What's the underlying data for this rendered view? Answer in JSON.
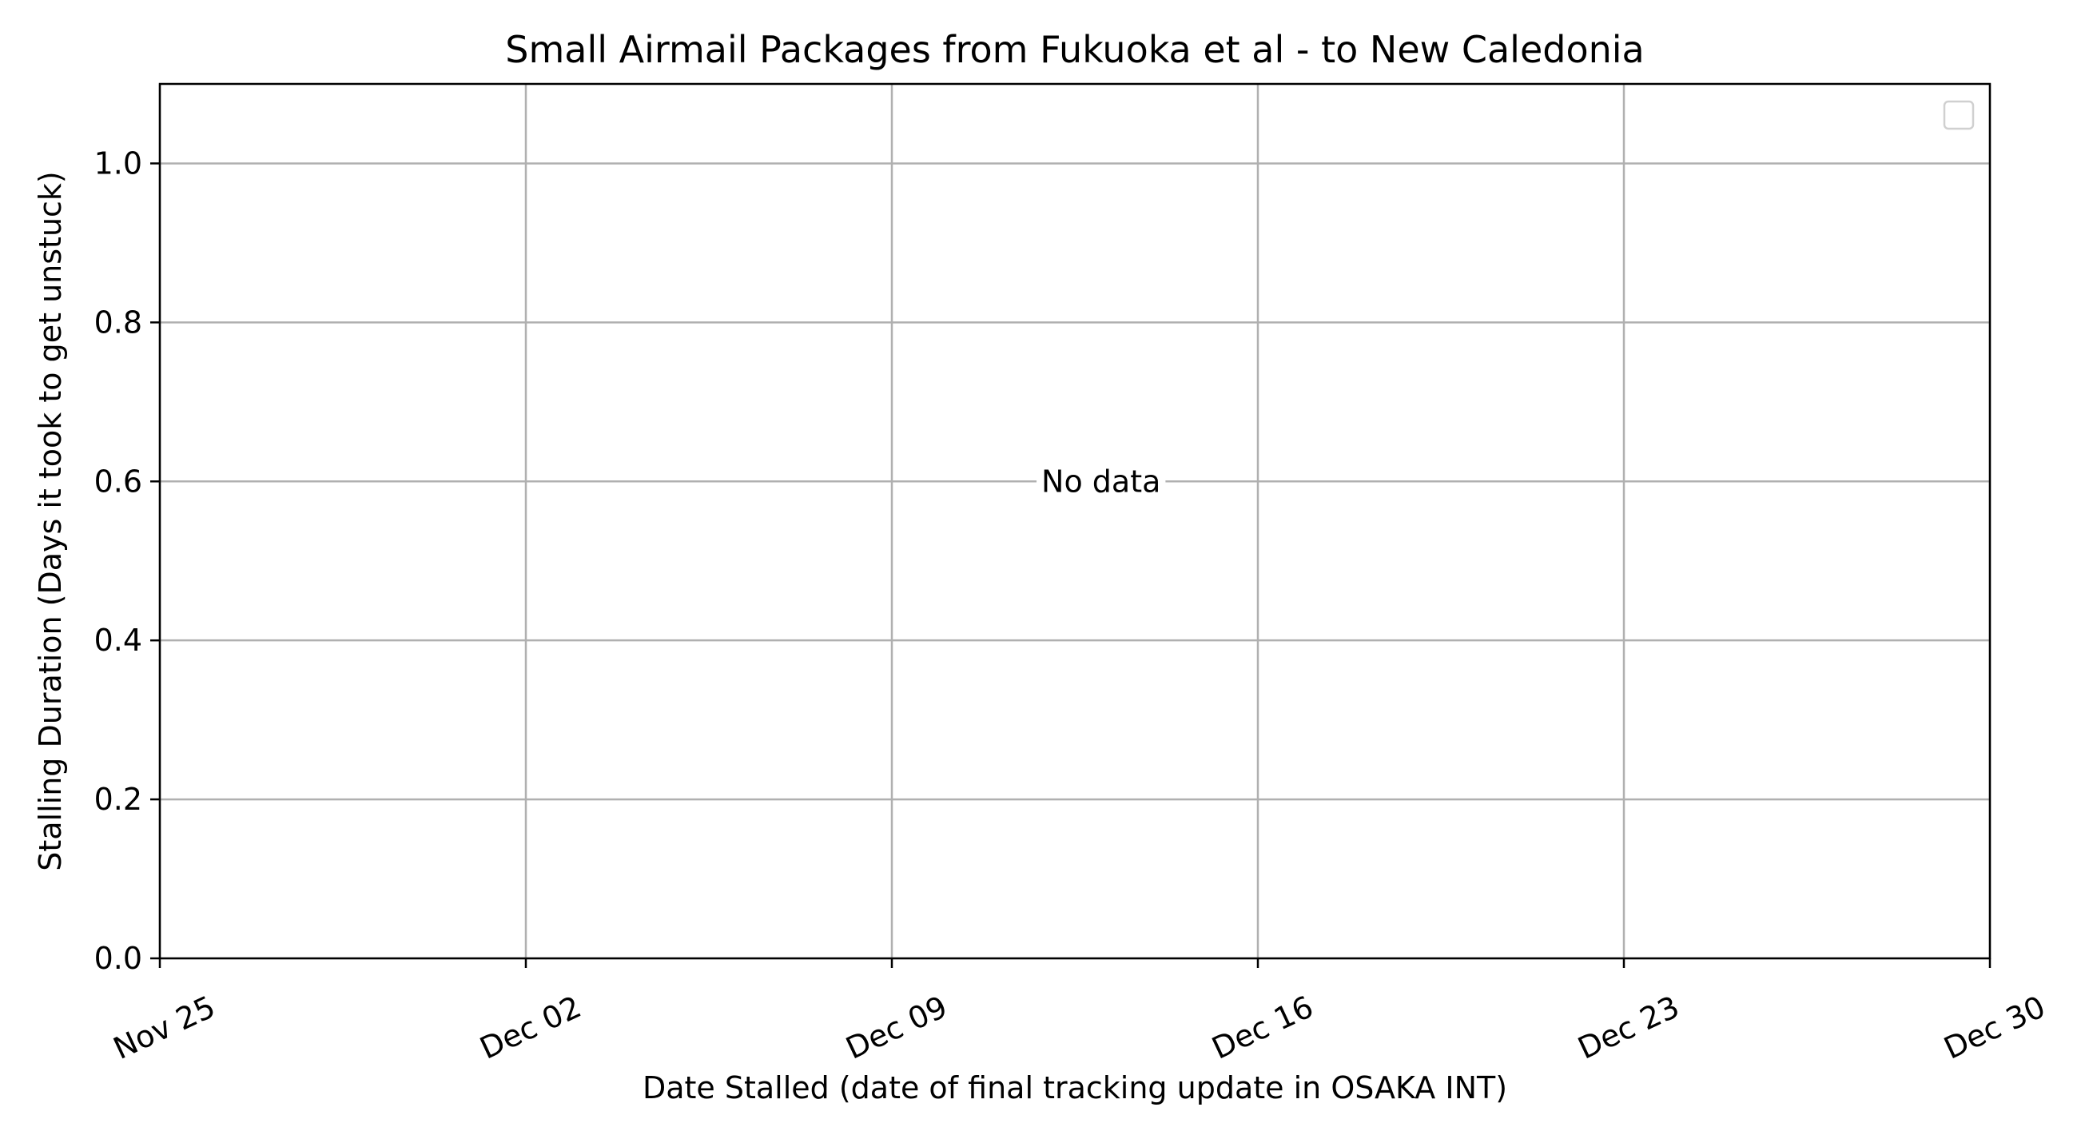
{
  "chart_data": {
    "type": "scatter",
    "title": "Small Airmail Packages from Fukuoka et al - to New Caledonia",
    "xlabel": "Date Stalled (date of final tracking update in OSAKA INT)",
    "ylabel": "Stalling Duration (Days it took to get unstuck)",
    "xlim": [
      "2023-11-25",
      "2023-12-30"
    ],
    "ylim": [
      0,
      1.1
    ],
    "x_ticks": [
      {
        "date": "2023-11-25",
        "label": "Nov 25"
      },
      {
        "date": "2023-12-02",
        "label": "Dec 02"
      },
      {
        "date": "2023-12-09",
        "label": "Dec 09"
      },
      {
        "date": "2023-12-16",
        "label": "Dec 16"
      },
      {
        "date": "2023-12-23",
        "label": "Dec 23"
      },
      {
        "date": "2023-12-30",
        "label": "Dec 30"
      }
    ],
    "y_ticks": [
      {
        "value": 0.0,
        "label": "0.0"
      },
      {
        "value": 0.2,
        "label": "0.2"
      },
      {
        "value": 0.4,
        "label": "0.4"
      },
      {
        "value": 0.6,
        "label": "0.6"
      },
      {
        "value": 0.8,
        "label": "0.8"
      },
      {
        "value": 1.0,
        "label": "1.0"
      }
    ],
    "grid": true,
    "legend_placement": "top-right",
    "series": [],
    "annotation": {
      "text": "No data",
      "x": "2023-12-13",
      "y": 0.6
    }
  }
}
